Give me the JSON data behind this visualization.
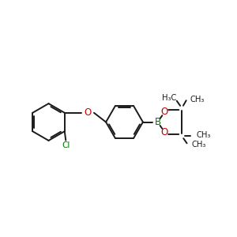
{
  "bg_color": "#ffffff",
  "bond_color": "#1a1a1a",
  "bond_width": 1.4,
  "B_color": "#007700",
  "O_color": "#cc0000",
  "Cl_color": "#007700",
  "text_color": "#1a1a1a",
  "figsize": [
    3.0,
    3.0
  ],
  "dpi": 100,
  "xlim": [
    0,
    10
  ],
  "ylim": [
    0,
    10
  ]
}
